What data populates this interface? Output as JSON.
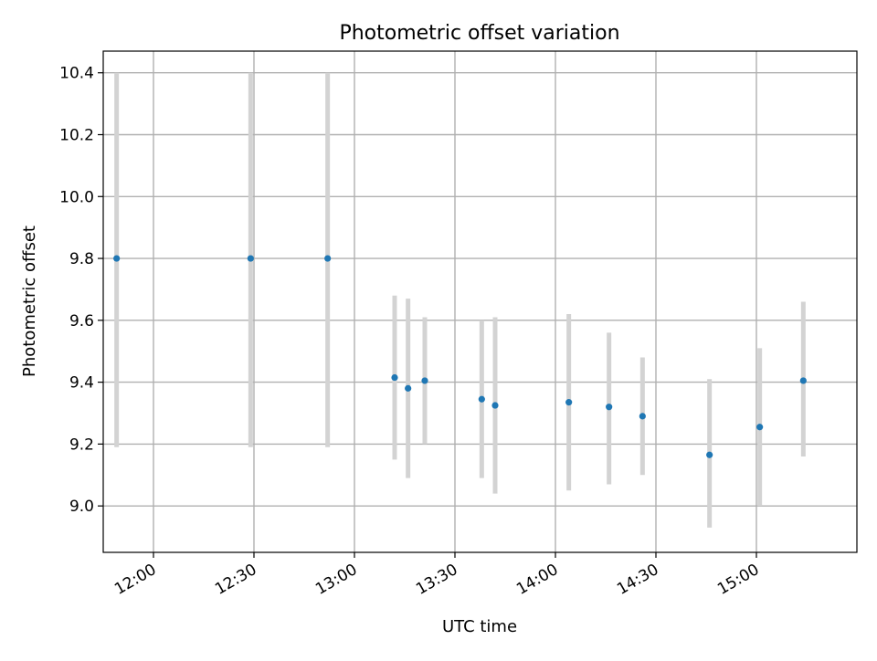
{
  "chart_data": {
    "type": "scatter",
    "title": "Photometric offset variation",
    "xlabel": "UTC time",
    "ylabel": "Photometric offset",
    "x_tick_labels": [
      "12:00",
      "12:30",
      "13:00",
      "13:30",
      "14:00",
      "14:30",
      "15:00"
    ],
    "y_tick_labels": [
      "9.0",
      "9.2",
      "9.4",
      "9.6",
      "9.8",
      "10.0",
      "10.2",
      "10.4"
    ],
    "xlim": [
      "11:45",
      "15:30"
    ],
    "ylim": [
      8.85,
      10.47
    ],
    "grid": true,
    "legend": "none",
    "series": [
      {
        "x": [
          "11:49",
          "12:29",
          "12:52",
          "13:12",
          "13:16",
          "13:21",
          "13:38",
          "13:42",
          "14:04",
          "14:16",
          "14:26",
          "14:46",
          "15:01",
          "15:14"
        ],
        "y": [
          9.8,
          9.8,
          9.8,
          9.415,
          9.38,
          9.405,
          9.345,
          9.325,
          9.335,
          9.32,
          9.29,
          9.165,
          9.255,
          9.405
        ],
        "y_low": [
          9.19,
          9.19,
          9.19,
          9.15,
          9.09,
          9.2,
          9.09,
          9.04,
          9.05,
          9.07,
          9.1,
          8.93,
          9.0,
          9.16
        ],
        "y_high": [
          10.4,
          10.4,
          10.4,
          9.68,
          9.67,
          9.61,
          9.6,
          9.61,
          9.62,
          9.56,
          9.48,
          9.41,
          9.51,
          9.66
        ]
      }
    ],
    "colors": {
      "points": "#1f77b4",
      "error_bars": "#d3d3d3",
      "grid": "#b0b0b0",
      "axes": "#000000"
    }
  }
}
